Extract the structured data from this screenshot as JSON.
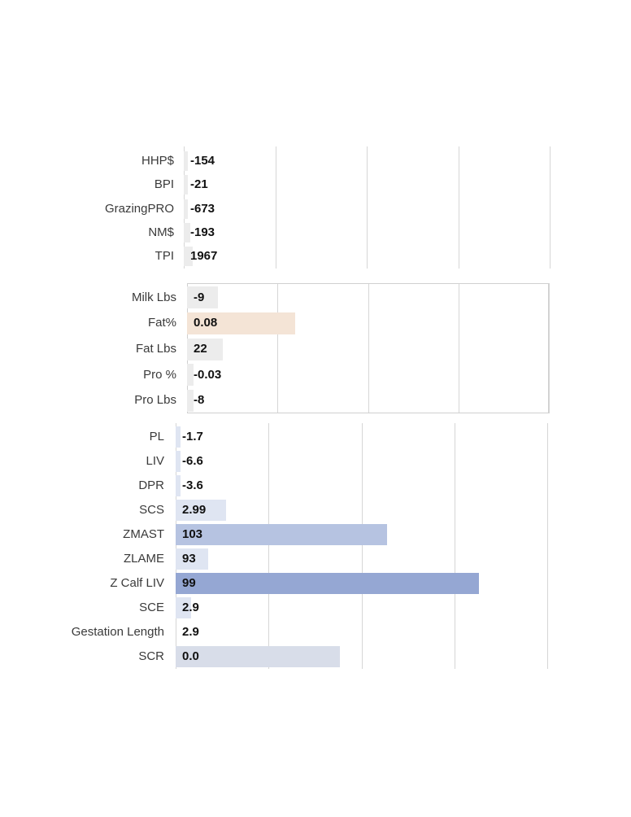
{
  "chart_data": [
    {
      "type": "bar",
      "orientation": "horizontal",
      "categories": [
        "HHP$",
        "BPI",
        "GrazingPRO",
        "NM$",
        "TPI"
      ],
      "values": [
        -154,
        -21,
        -673,
        -193,
        1967
      ],
      "value_labels": [
        "-154",
        "-21",
        "-673",
        "-193",
        "1967"
      ],
      "bar_fraction": [
        0.012,
        0.012,
        0.012,
        0.018,
        0.025
      ],
      "bar_colors": [
        "#ececec",
        "#ececec",
        "#ececec",
        "#ececec",
        "#ececec"
      ],
      "grid": true,
      "frame": false,
      "xlabel": "",
      "ylabel": ""
    },
    {
      "type": "bar",
      "orientation": "horizontal",
      "categories": [
        "Milk Lbs",
        "Fat%",
        "Fat Lbs",
        "Pro %",
        "Pro Lbs"
      ],
      "values": [
        -9,
        0.08,
        22,
        -0.03,
        -8
      ],
      "value_labels": [
        "-9",
        "0.08",
        "22",
        "-0.03",
        "-8"
      ],
      "bar_fraction": [
        0.086,
        0.298,
        0.099,
        0.018,
        0.018
      ],
      "bar_colors": [
        "#ececec",
        "#f4e4d6",
        "#ececec",
        "#ececec",
        "#ececec"
      ],
      "grid": true,
      "frame": true,
      "xlabel": "",
      "ylabel": ""
    },
    {
      "type": "bar",
      "orientation": "horizontal",
      "categories": [
        "PL",
        "LIV",
        "DPR",
        "SCS",
        "ZMAST",
        "ZLAME",
        "Z Calf LIV",
        "SCE",
        "Gestation Length",
        "SCR"
      ],
      "values": [
        -1.7,
        -6.6,
        -3.6,
        2.99,
        103,
        93,
        99,
        2.9,
        2.9,
        0.0
      ],
      "value_labels": [
        "-1.7",
        "-6.6",
        "-3.6",
        "2.99",
        "103",
        "93",
        "99",
        "2.9",
        "2.9",
        "0.0"
      ],
      "bar_fraction": [
        0.013,
        0.013,
        0.013,
        0.136,
        0.569,
        0.087,
        0.817,
        0.041,
        0.0,
        0.441
      ],
      "bar_colors": [
        "#dfe5f2",
        "#dfe5f2",
        "#dfe5f2",
        "#dfe5f2",
        "#b6c3e1",
        "#dfe5f2",
        "#95a7d3",
        "#dfe5f2",
        "#dfe5f2",
        "#d8dde9"
      ],
      "grid": true,
      "frame": false,
      "xlabel": "",
      "ylabel": ""
    }
  ]
}
